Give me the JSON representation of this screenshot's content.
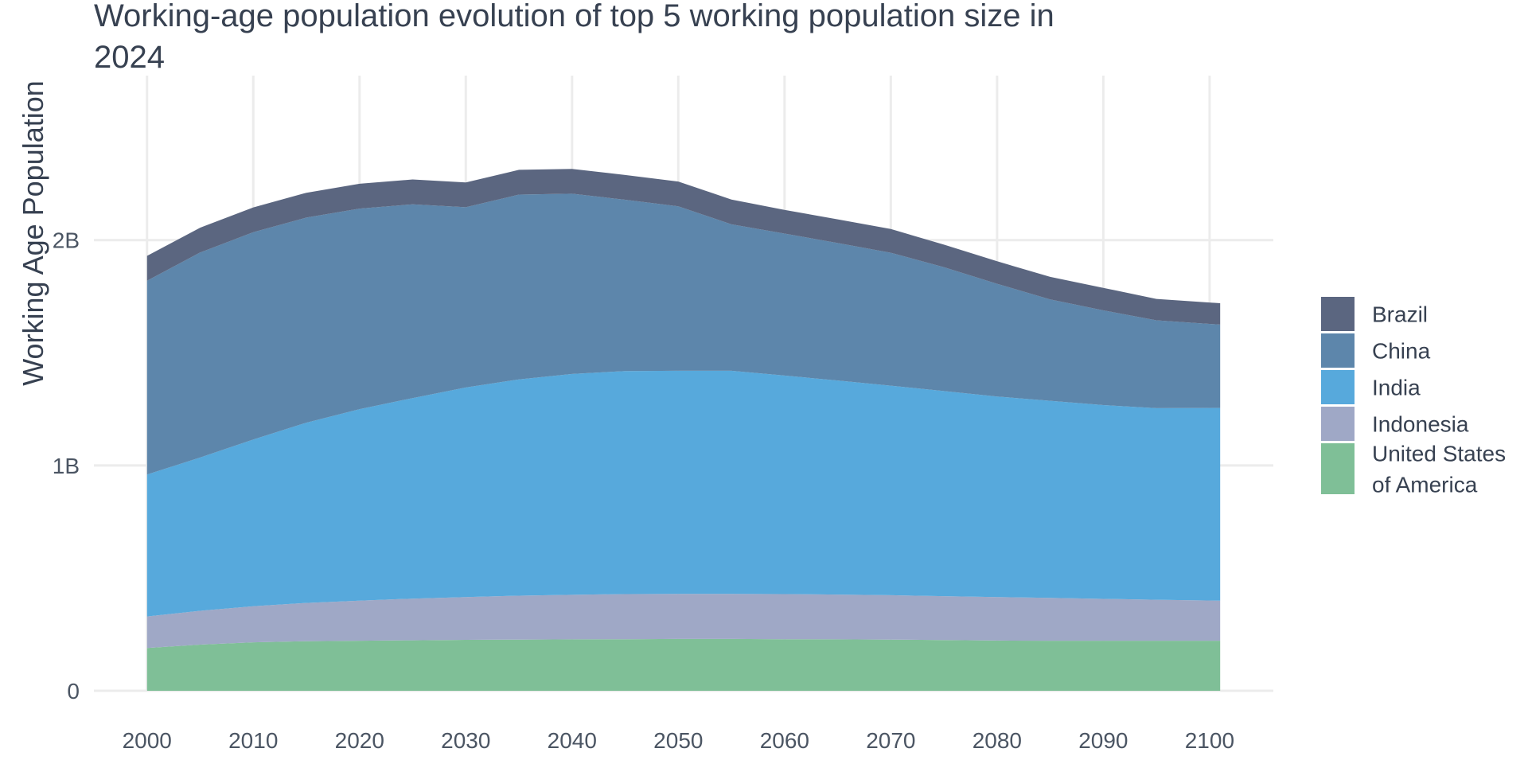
{
  "chart_data": {
    "type": "area",
    "stacked": true,
    "title": "Working-age population evolution of top 5 working population size in 2024",
    "ylabel": "Working Age Population",
    "xlabel": "",
    "xlim": [
      1995,
      2106
    ],
    "ylim": [
      0,
      2.73
    ],
    "x_ticks": [
      2000,
      2010,
      2020,
      2030,
      2040,
      2050,
      2060,
      2070,
      2080,
      2090,
      2100
    ],
    "y_ticks": [
      {
        "value": 0,
        "label": "0"
      },
      {
        "value": 1,
        "label": "1B"
      },
      {
        "value": 2,
        "label": "2B"
      }
    ],
    "grid": true,
    "legend_position": "right",
    "unit": "billions",
    "x": [
      2000,
      2005,
      2010,
      2015,
      2020,
      2025,
      2030,
      2035,
      2040,
      2045,
      2050,
      2055,
      2060,
      2065,
      2070,
      2075,
      2080,
      2085,
      2090,
      2095,
      2101
    ],
    "series": [
      {
        "name": "United States of America",
        "color": "#7fbf97",
        "values": [
          0.19,
          0.205,
          0.215,
          0.22,
          0.222,
          0.224,
          0.226,
          0.227,
          0.228,
          0.229,
          0.23,
          0.23,
          0.229,
          0.228,
          0.227,
          0.225,
          0.223,
          0.222,
          0.222,
          0.222,
          0.222
        ]
      },
      {
        "name": "Indonesia",
        "color": "#9fa8c6",
        "values": [
          0.14,
          0.15,
          0.16,
          0.17,
          0.178,
          0.185,
          0.19,
          0.195,
          0.198,
          0.2,
          0.2,
          0.2,
          0.2,
          0.199,
          0.197,
          0.195,
          0.193,
          0.19,
          0.186,
          0.182,
          0.178
        ]
      },
      {
        "name": "India",
        "color": "#57a9dc",
        "values": [
          0.63,
          0.68,
          0.74,
          0.8,
          0.85,
          0.89,
          0.93,
          0.96,
          0.98,
          0.99,
          0.99,
          0.99,
          0.97,
          0.95,
          0.93,
          0.91,
          0.89,
          0.875,
          0.86,
          0.85,
          0.855
        ]
      },
      {
        "name": "China",
        "color": "#5d86ab",
        "values": [
          0.86,
          0.91,
          0.92,
          0.91,
          0.89,
          0.86,
          0.8,
          0.82,
          0.8,
          0.76,
          0.73,
          0.65,
          0.63,
          0.61,
          0.59,
          0.55,
          0.5,
          0.45,
          0.42,
          0.39,
          0.37
        ]
      },
      {
        "name": "Brazil",
        "color": "#5b6680",
        "values": [
          0.11,
          0.11,
          0.11,
          0.11,
          0.11,
          0.11,
          0.11,
          0.11,
          0.11,
          0.11,
          0.11,
          0.11,
          0.105,
          0.105,
          0.105,
          0.1,
          0.1,
          0.1,
          0.1,
          0.095,
          0.095
        ]
      }
    ],
    "legend": [
      {
        "name": "Brazil",
        "lines": [
          "Brazil"
        ],
        "color": "#5b6680"
      },
      {
        "name": "China",
        "lines": [
          "China"
        ],
        "color": "#5d86ab"
      },
      {
        "name": "India",
        "lines": [
          "India"
        ],
        "color": "#57a9dc"
      },
      {
        "name": "Indonesia",
        "lines": [
          "Indonesia"
        ],
        "color": "#9fa8c6"
      },
      {
        "name": "United States of America",
        "lines": [
          "United States",
          "of America"
        ],
        "color": "#7fbf97"
      }
    ]
  },
  "title_lines": [
    "Working-age population evolution of top 5 working population size in",
    "2024"
  ]
}
